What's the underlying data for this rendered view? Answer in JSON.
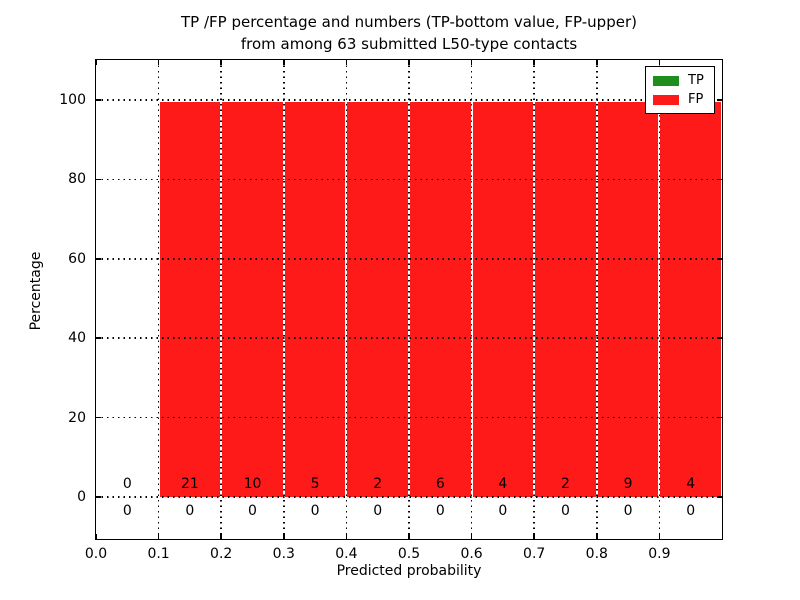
{
  "chart_data": {
    "type": "bar",
    "stacked_percentage": true,
    "title_lines": [
      "TP /FP percentage and numbers (TP-bottom value, FP-upper)",
      "from among 63 submitted L50-type contacts"
    ],
    "title": "TP /FP percentage and numbers (TP-bottom value, FP-upper)\nfrom among 63 submitted L50-type contacts",
    "xlabel": "Predicted probability",
    "ylabel": "Percentage",
    "total_contacts": 63,
    "x_tick_labels": [
      "0.0",
      "0.1",
      "0.2",
      "0.3",
      "0.4",
      "0.5",
      "0.6",
      "0.7",
      "0.8",
      "0.9"
    ],
    "y_ticks": [
      0,
      20,
      40,
      60,
      80,
      100
    ],
    "y_tick_labels": [
      "0",
      "20",
      "40",
      "60",
      "80",
      "100"
    ],
    "xlim": [
      0.0,
      1.0
    ],
    "ylim_display": [
      -10.6,
      110.2
    ],
    "grid": true,
    "bins": [
      [
        0.0,
        0.1
      ],
      [
        0.1,
        0.2
      ],
      [
        0.2,
        0.3
      ],
      [
        0.3,
        0.4
      ],
      [
        0.4,
        0.5
      ],
      [
        0.5,
        0.6
      ],
      [
        0.6,
        0.7
      ],
      [
        0.7,
        0.8
      ],
      [
        0.8,
        0.9
      ],
      [
        0.9,
        1.0
      ]
    ],
    "series": [
      {
        "name": "TP",
        "color": "#1e8e1e",
        "counts": [
          0,
          0,
          0,
          0,
          0,
          0,
          0,
          0,
          0,
          0
        ],
        "percentages": [
          0,
          0,
          0,
          0,
          0,
          0,
          0,
          0,
          0,
          0
        ]
      },
      {
        "name": "FP",
        "color": "#ff1a1a",
        "counts": [
          0,
          21,
          10,
          5,
          2,
          6,
          4,
          2,
          9,
          4
        ],
        "percentages": [
          0,
          100,
          100,
          100,
          100,
          100,
          100,
          100,
          100,
          100
        ]
      }
    ],
    "legend": {
      "position": "upper right",
      "entries": [
        {
          "label": "TP",
          "color": "#1e8e1e"
        },
        {
          "label": "FP",
          "color": "#ff1a1a"
        }
      ]
    }
  }
}
